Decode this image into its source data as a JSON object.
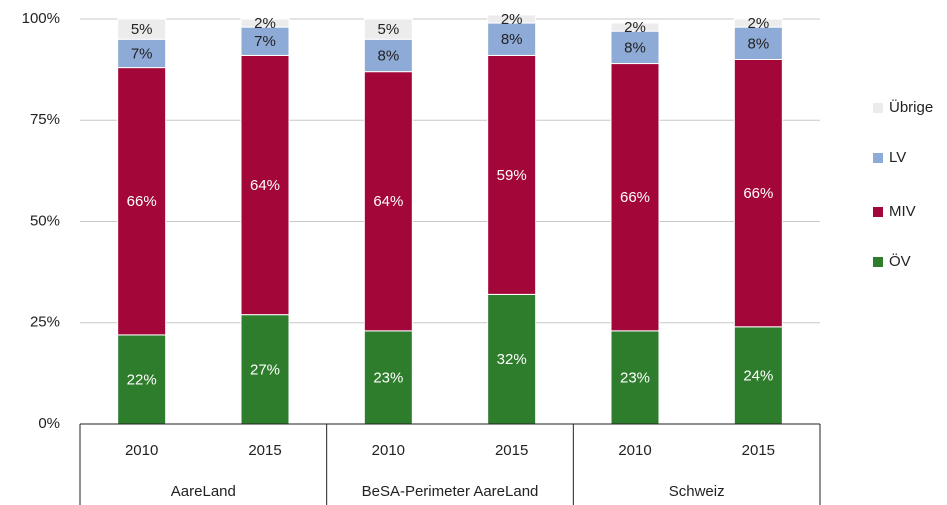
{
  "chart_data": {
    "type": "stacked_bar",
    "categories": [
      "2010",
      "2015",
      "2010",
      "2015",
      "2010",
      "2015"
    ],
    "groups": [
      "AareLand",
      "BeSA-Perimeter AareLand",
      "Schweiz"
    ],
    "series": [
      {
        "name": "ÖV",
        "color": "#2e7d2c",
        "values": [
          22,
          27,
          23,
          32,
          23,
          24
        ],
        "value_labels": [
          "22%",
          "27%",
          "23%",
          "32%",
          "23%",
          "24%"
        ]
      },
      {
        "name": "MIV",
        "color": "#a3073a",
        "values": [
          66,
          64,
          64,
          59,
          66,
          66
        ],
        "value_labels": [
          "66%",
          "64%",
          "64%",
          "59%",
          "66%",
          "66%"
        ]
      },
      {
        "name": "LV",
        "color": "#8eaad6",
        "values": [
          7,
          7,
          8,
          8,
          8,
          8
        ],
        "value_labels": [
          "7%",
          "7%",
          "8%",
          "8%",
          "8%",
          "8%"
        ]
      },
      {
        "name": "Übrige",
        "color": "#ececec",
        "values": [
          5,
          2,
          5,
          2,
          2,
          2
        ],
        "value_labels": [
          "5%",
          "2%",
          "5%",
          "2%",
          "2%",
          "2%"
        ]
      }
    ],
    "ylim": [
      0,
      100
    ],
    "yticks": [
      {
        "value": 0,
        "label": "0%"
      },
      {
        "value": 25,
        "label": "25%"
      },
      {
        "value": 50,
        "label": "50%"
      },
      {
        "value": 75,
        "label": "75%"
      },
      {
        "value": 100,
        "label": "100%"
      }
    ],
    "grid": true,
    "legend": "right"
  }
}
